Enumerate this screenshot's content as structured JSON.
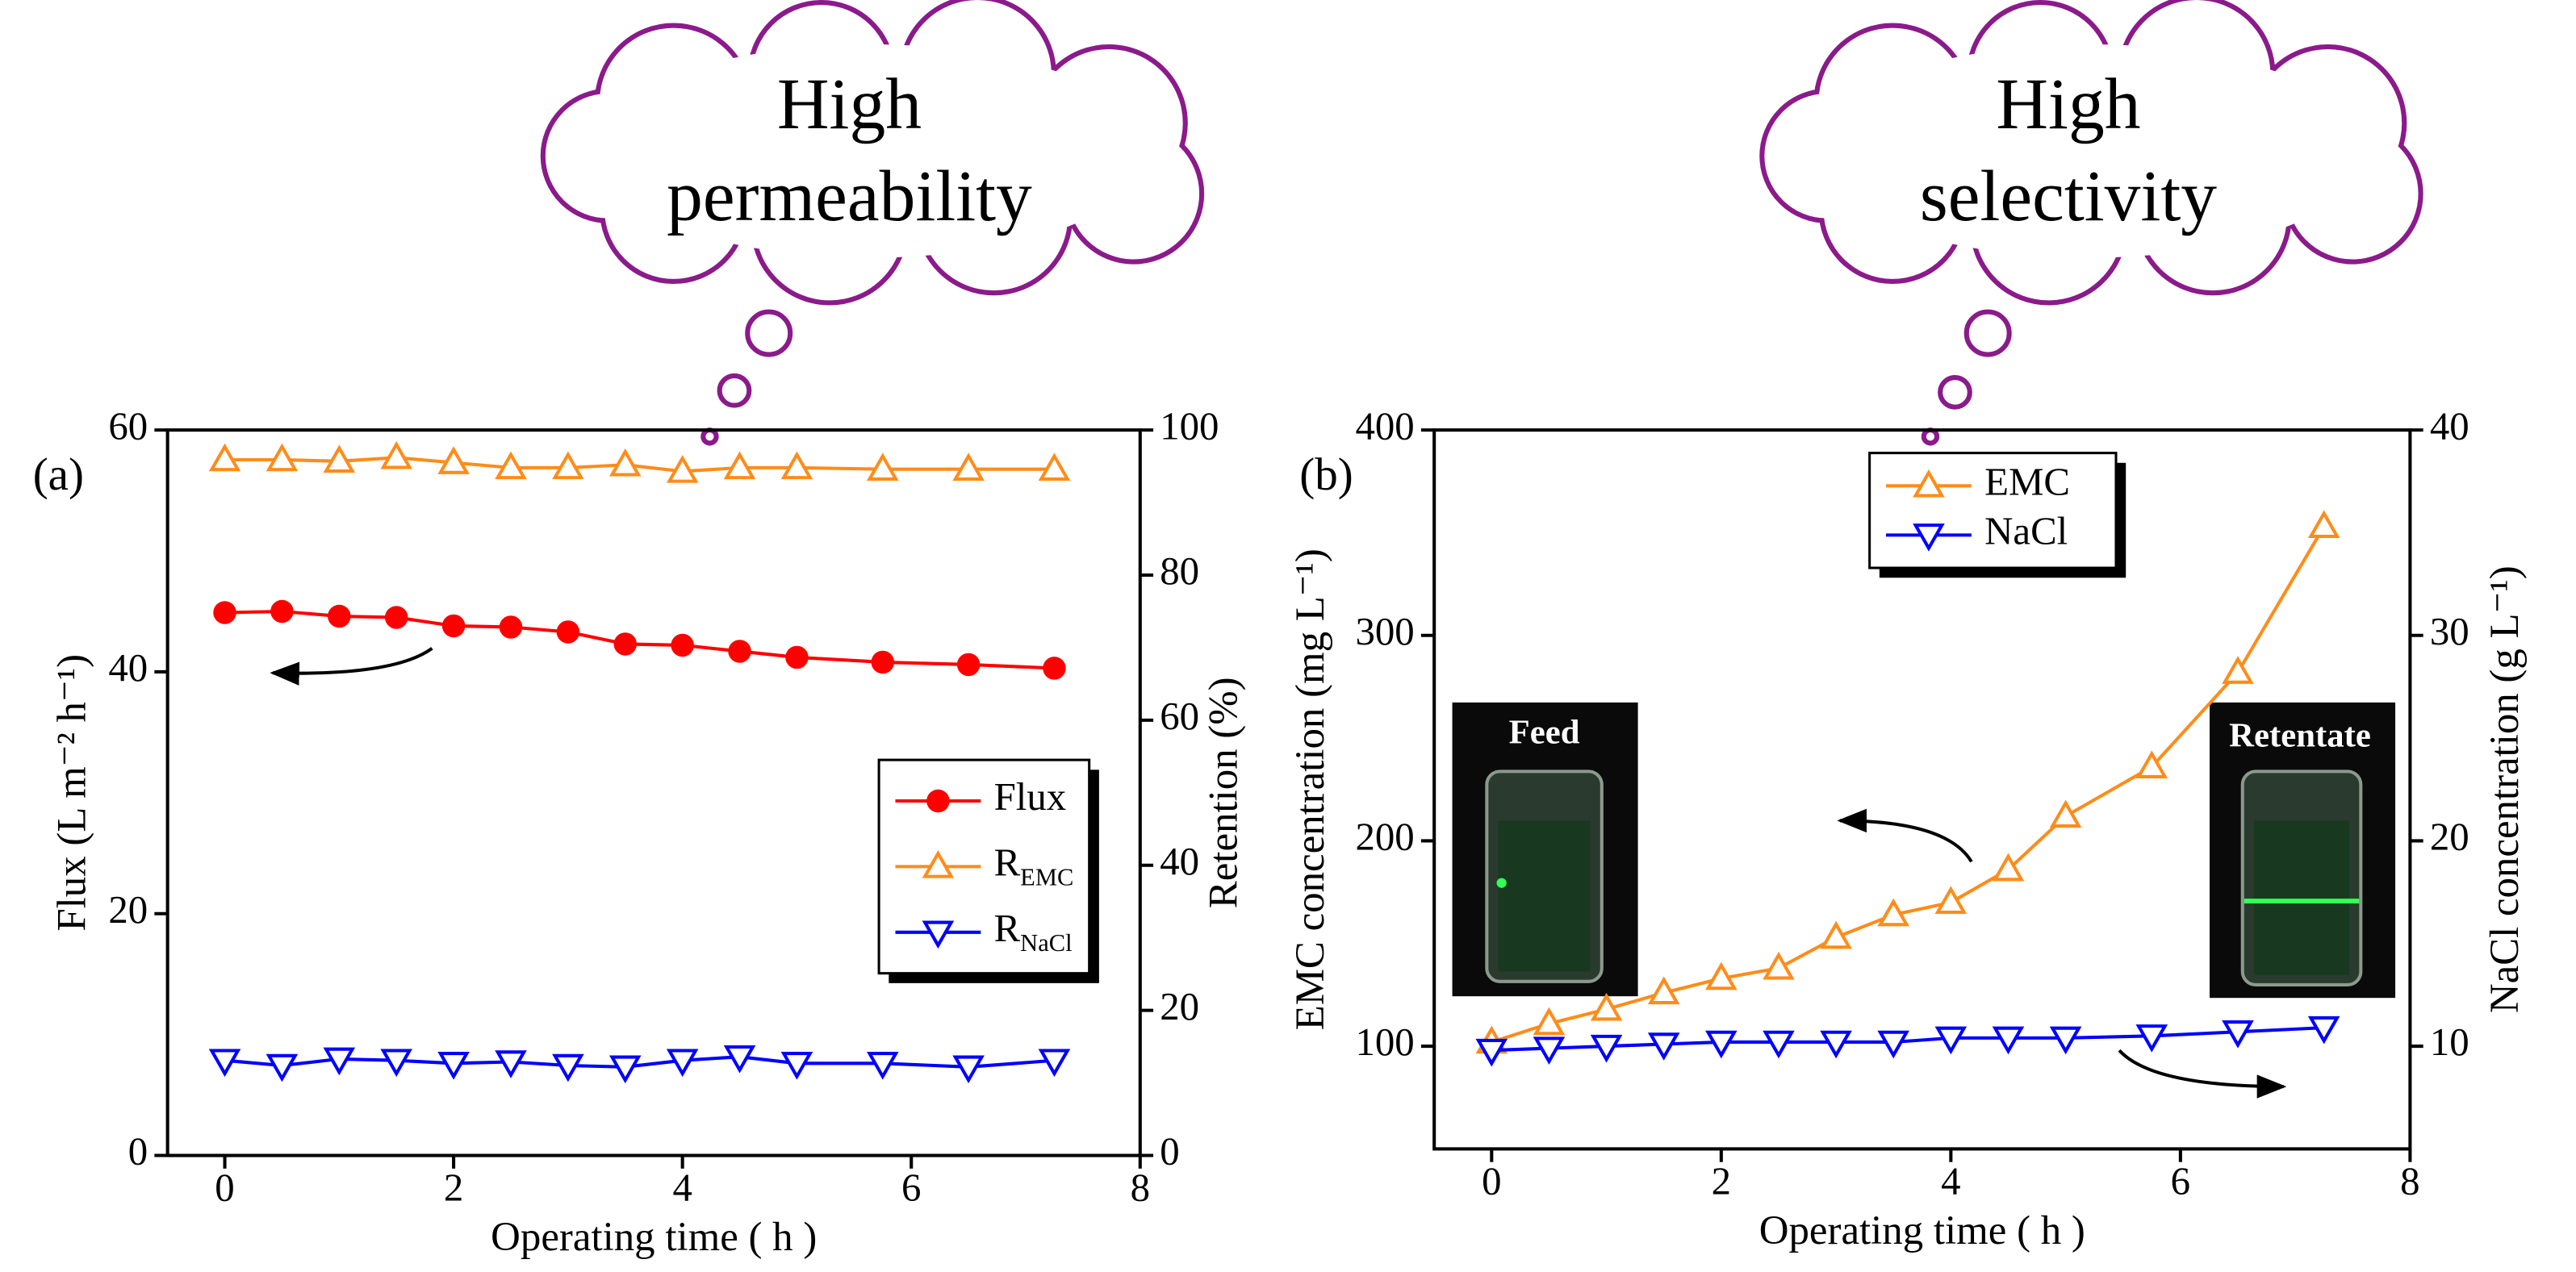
{
  "chart_data": [
    {
      "type": "line",
      "panel_label": "(a)",
      "callout": [
        "High",
        "permeability"
      ],
      "xlabel": "Operating time ( h )",
      "ylabel": "Flux (L m⁻² h⁻¹)",
      "y2label": "Retention (%)",
      "xlim": [
        -0.5,
        8
      ],
      "xticks": [
        0,
        2,
        4,
        6,
        8
      ],
      "ylim": [
        0,
        60
      ],
      "yticks": [
        0,
        20,
        40,
        60
      ],
      "y2lim": [
        0,
        100
      ],
      "y2ticks": [
        0,
        20,
        40,
        60,
        80,
        100
      ],
      "legend": "center right",
      "x": [
        0,
        0.5,
        1,
        1.5,
        2,
        2.5,
        3,
        3.5,
        4,
        4.5,
        5,
        5.75,
        6.5,
        7.25
      ],
      "series": [
        {
          "name": "Flux",
          "color": "#ff0000",
          "marker": "circle",
          "values": [
            44.9,
            45.0,
            44.6,
            44.5,
            43.8,
            43.7,
            43.3,
            42.3,
            42.2,
            41.7,
            41.2,
            40.8,
            40.6,
            40.3
          ]
        },
        {
          "name": "R",
          "subscript": "EMC",
          "color": "#ff8c1a",
          "marker": "triangle-up",
          "axis": "y2",
          "values": [
            95.9,
            95.9,
            95.7,
            96.2,
            95.5,
            94.8,
            94.8,
            95.2,
            94.3,
            94.8,
            94.8,
            94.6,
            94.6,
            94.6
          ]
        },
        {
          "name": "R",
          "subscript": "NaCl",
          "color": "#0000ff",
          "marker": "triangle-down",
          "axis": "y2",
          "values": [
            13.1,
            12.4,
            13.3,
            13.1,
            12.7,
            12.9,
            12.4,
            12.2,
            13.1,
            13.6,
            12.7,
            12.7,
            12.2,
            13.1
          ]
        }
      ]
    },
    {
      "type": "line",
      "panel_label": "(b)",
      "callout": [
        "High",
        "selectivity"
      ],
      "annotations": [
        "Feed",
        "Retentate"
      ],
      "xlabel": "Operating time ( h )",
      "ylabel": "EMC concentration (mg L⁻¹)",
      "y2label": "NaCl concentration (g L⁻¹)",
      "xlim": [
        -0.5,
        8
      ],
      "xticks": [
        0,
        2,
        4,
        6,
        8
      ],
      "ylim": [
        50,
        400
      ],
      "yticks": [
        100,
        200,
        300,
        400
      ],
      "y2lim": [
        5,
        40
      ],
      "y2ticks": [
        10,
        20,
        30,
        40
      ],
      "legend": "upper center",
      "x": [
        0,
        0.5,
        1,
        1.5,
        2,
        2.5,
        3,
        3.5,
        4,
        4.5,
        5,
        5.75,
        6.5,
        7.25
      ],
      "series": [
        {
          "name": "EMC",
          "color": "#ff8c1a",
          "marker": "triangle-up",
          "values": [
            102,
            111,
            118,
            126,
            133,
            138,
            153,
            164,
            170,
            186,
            212,
            236,
            282,
            353
          ]
        },
        {
          "name": "NaCl",
          "color": "#0000ff",
          "marker": "triangle-down",
          "axis": "y2",
          "values": [
            9.8,
            9.9,
            10.0,
            10.1,
            10.2,
            10.2,
            10.2,
            10.2,
            10.4,
            10.4,
            10.4,
            10.5,
            10.7,
            10.9
          ]
        }
      ]
    }
  ]
}
